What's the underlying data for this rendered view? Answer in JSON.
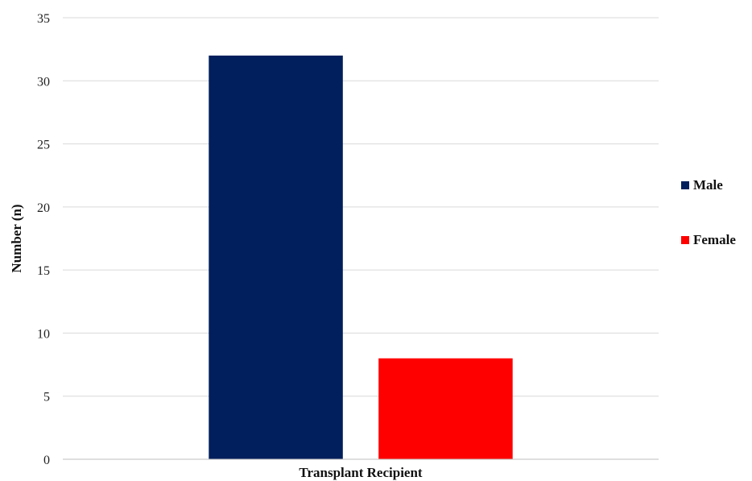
{
  "chart_data": {
    "type": "bar",
    "categories": [
      "Transplant Recipient"
    ],
    "series": [
      {
        "name": "Male",
        "values": [
          32
        ],
        "color": "#001f5c"
      },
      {
        "name": "Female",
        "values": [
          8
        ],
        "color": "#ff0000"
      }
    ],
    "xlabel": "Transplant Recipient",
    "ylabel": "Number (n)",
    "ylim": [
      0,
      35
    ],
    "yticks": [
      0,
      5,
      10,
      15,
      20,
      25,
      30,
      35
    ],
    "grid": true,
    "legend_position": "right"
  }
}
